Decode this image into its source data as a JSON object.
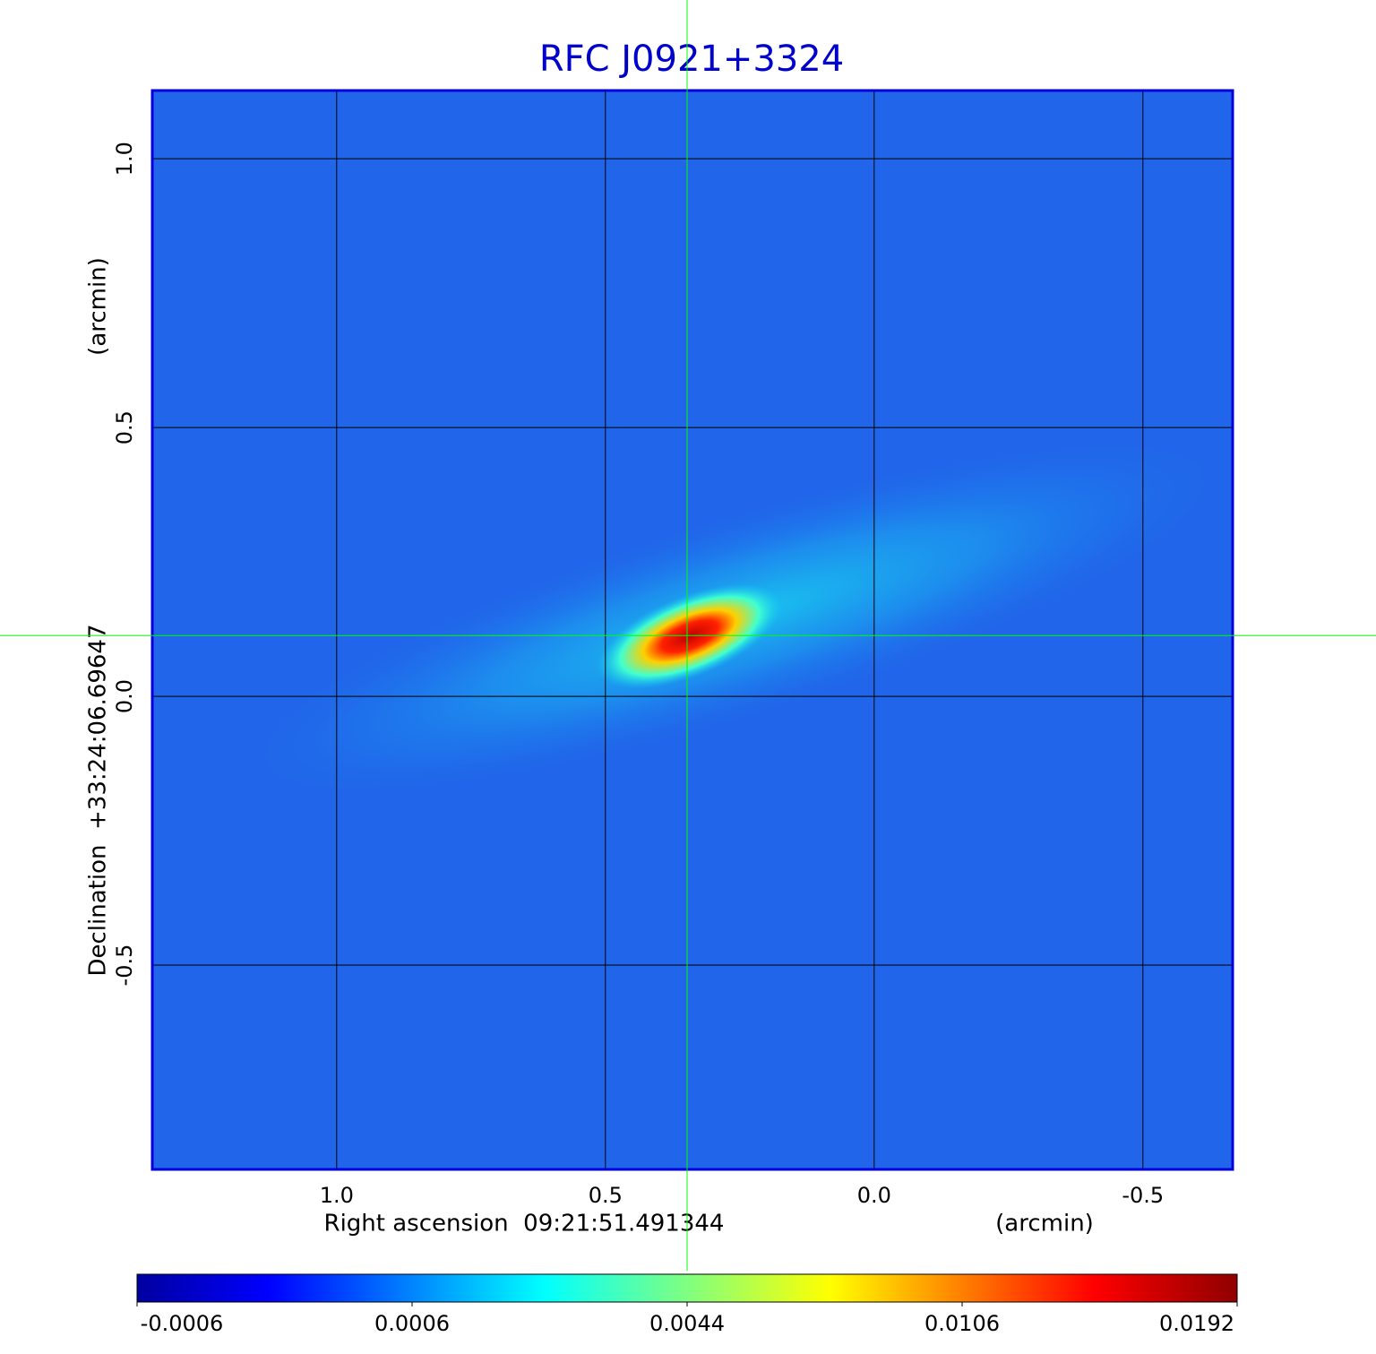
{
  "chart_data": {
    "type": "image",
    "title": "RFC J0921+3324",
    "x_label": "Right ascension  09:21:51.491344",
    "x_unit": "(arcmin)",
    "y_label": "Declination  +33:24:06.69647",
    "y_unit": "(arcmin)",
    "xlim": [
      1.343,
      -0.667
    ],
    "ylim": [
      -0.88,
      1.127
    ],
    "xticks": [
      {
        "value": 1,
        "label": "1.0"
      },
      0.5,
      {
        "value": 0,
        "label": "0.0"
      },
      -0.5
    ],
    "yticks": [
      {
        "value": 1,
        "label": "1.0"
      },
      0.5,
      {
        "value": 0,
        "label": "0.0"
      },
      -0.5
    ],
    "grid": true,
    "crosshair": {
      "x": 0.348,
      "y": 0.113,
      "color": "#00ff00"
    },
    "colorbar": {
      "colormap": "jet",
      "ticks": [
        -0.0006,
        0.0006,
        0.0044,
        0.0106,
        0.0192
      ]
    }
  }
}
